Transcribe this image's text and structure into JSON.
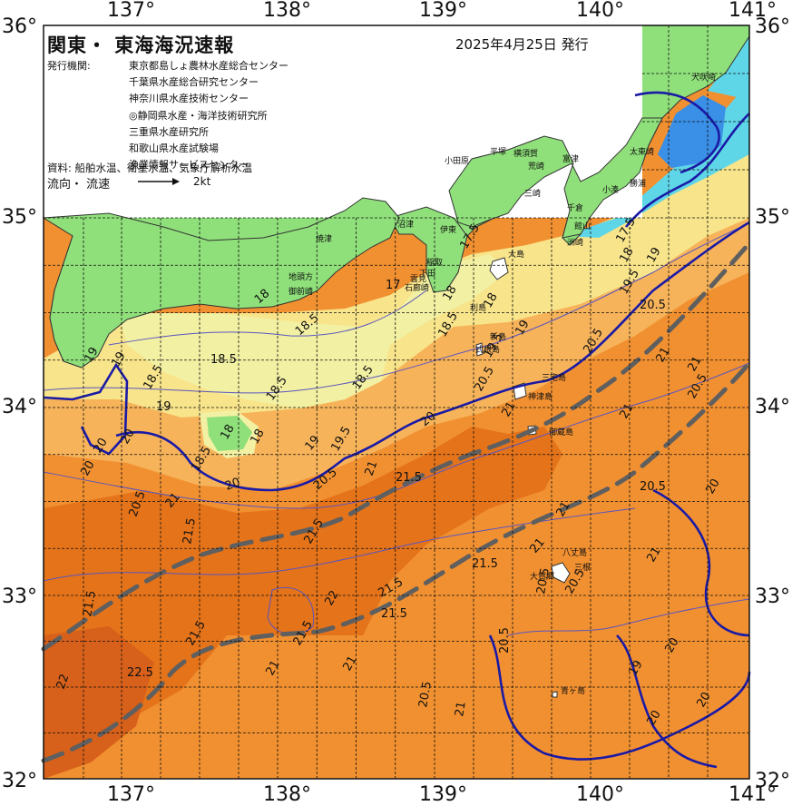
{
  "title": "関東・ 東海海況速報",
  "issue_date": "2025年4月25日 発行",
  "institutions_label": "発行機関:",
  "institutions": [
    "東京都島しょ農林水産総合センター",
    "千葉県水産総合研究センター",
    "神奈川県水産技術センター",
    "◎静岡県水産・海洋技術研究所",
    "三重県水産研究所",
    "和歌山県水産試験場",
    "漁業情報サービスセンター"
  ],
  "data_source": "資料: 船舶水温、衛星水温、気象庁解析水温",
  "flow_legend": {
    "label": "流向・ 流速",
    "unit": "2kt"
  },
  "axes": {
    "lon_labels": [
      "137°",
      "138°",
      "139°",
      "140°",
      "141°"
    ],
    "lat_labels": [
      "36°",
      "35°",
      "34°",
      "33°",
      "32°"
    ],
    "lon_corner_left": "36°",
    "lon_corner_right_top": "36°",
    "lat_corner_bottom_left": "32°",
    "lat_corner_bottom_right": "32°"
  },
  "colors": {
    "sea_warm_deep": "#e4731a",
    "sea_warm": "#f19030",
    "sea_mid": "#f6b35a",
    "sea_cool": "#f8e48a",
    "sea_cold": "#f2f0a2",
    "land": "#8fe07a",
    "cold_water": "#5fd6e8",
    "very_cold": "#3a8fe6",
    "isotherm_main": "#1a1aa6",
    "kuroshio_axis": "#5f5f5f",
    "grid": "#111111"
  },
  "places": [
    "犬吠埼",
    "太東崎",
    "勝浦",
    "小湊",
    "千倉",
    "館山",
    "洲崎",
    "富津",
    "横須賀",
    "平塚",
    "荒崎",
    "三崎",
    "小田原",
    "伊東",
    "稲取",
    "下田",
    "石廊崎",
    "雲見",
    "沼津",
    "焼津",
    "御前崎",
    "地頭方",
    "大島",
    "利島",
    "新島",
    "式根島",
    "三宅島",
    "神津島",
    "御蔵島",
    "八丈島",
    "三根",
    "大賀郷",
    "青ヶ島"
  ],
  "isotherm_labels": [
    "17.5",
    "17",
    "18",
    "18.5",
    "19",
    "19.5",
    "20",
    "20.5",
    "21",
    "21.5",
    "22",
    "22.5"
  ]
}
